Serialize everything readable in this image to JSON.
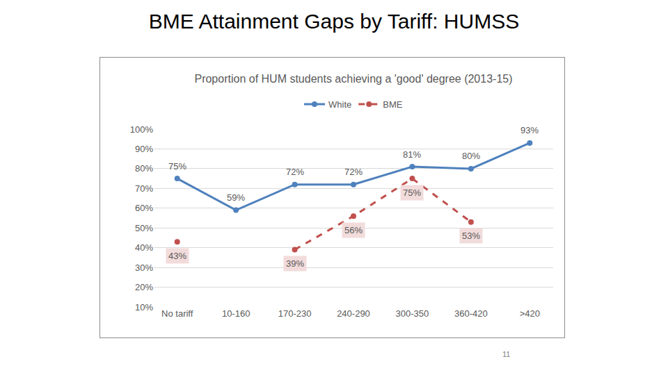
{
  "slide": {
    "title": "BME Attainment Gaps by Tariff: HUMSS",
    "page_number": "11"
  },
  "chart_data": {
    "type": "line",
    "title": "Proportion of HUM students achieving a 'good' degree (2013-15)",
    "categories": [
      "No tariff",
      "10-160",
      "170-230",
      "240-290",
      "300-350",
      "360-420",
      ">420"
    ],
    "series": [
      {
        "name": "White",
        "color": "#4f81bd",
        "marker": "circle",
        "line_style": "solid",
        "values": [
          75,
          59,
          72,
          72,
          81,
          80,
          93
        ],
        "value_labels": [
          "75%",
          "59%",
          "72%",
          "72%",
          "81%",
          "80%",
          "93%"
        ]
      },
      {
        "name": "BME",
        "color": "#c0504d",
        "marker": "circle",
        "line_style": "dashed",
        "values": [
          43,
          null,
          39,
          56,
          75,
          53,
          null
        ],
        "value_labels": [
          "43%",
          null,
          "39%",
          "56%",
          "75%",
          "53%",
          null
        ]
      }
    ],
    "ylim": [
      10,
      100
    ],
    "yticks": [
      {
        "value": 10,
        "label": "10%"
      },
      {
        "value": 20,
        "label": "20%"
      },
      {
        "value": 30,
        "label": "30%"
      },
      {
        "value": 40,
        "label": "40%"
      },
      {
        "value": 50,
        "label": "50%"
      },
      {
        "value": 60,
        "label": "60%"
      },
      {
        "value": 70,
        "label": "70%"
      },
      {
        "value": 80,
        "label": "80%"
      },
      {
        "value": 90,
        "label": "90%"
      },
      {
        "value": 100,
        "label": "100%"
      }
    ],
    "grid": true,
    "legend": "top",
    "data_labels": true
  }
}
